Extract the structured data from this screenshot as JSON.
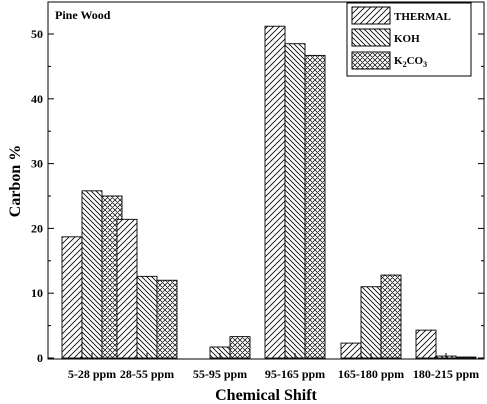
{
  "chart_data": {
    "type": "bar",
    "title": "Pine Wood",
    "xlabel": "Chemical Shift",
    "ylabel": "Carbon %",
    "ylim": [
      0,
      55
    ],
    "yticks": [
      0,
      10,
      20,
      30,
      40,
      50
    ],
    "grid": false,
    "legend_position": "top-right",
    "categories": [
      "5-28 ppm",
      "28-55 ppm",
      "55-95 ppm",
      "95-165 ppm",
      "165-180 ppm",
      "180-215 ppm"
    ],
    "series": [
      {
        "name": "THERMAL",
        "pattern": "diagonal-forward",
        "values": [
          18.7,
          21.4,
          0.0,
          51.2,
          2.3,
          4.3
        ]
      },
      {
        "name": "KOH",
        "pattern": "diagonal-back",
        "values": [
          25.8,
          12.6,
          1.7,
          48.5,
          11.0,
          0.3
        ]
      },
      {
        "name": "K2CO3",
        "name_parts": [
          "K",
          "2",
          "CO",
          "3"
        ],
        "pattern": "crosshatch",
        "values": [
          25.0,
          12.0,
          3.3,
          46.7,
          12.8,
          0.15
        ]
      }
    ]
  }
}
